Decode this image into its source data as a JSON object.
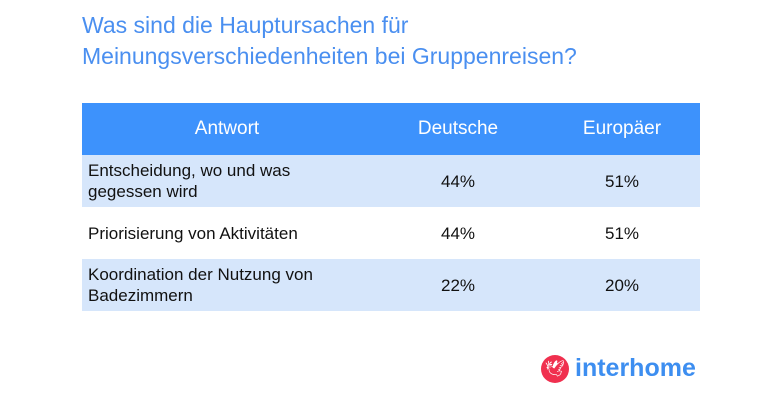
{
  "title_line1": "Was sind die Hauptursachen für",
  "title_line2": "Meinungsverschiedenheiten bei Gruppenreisen?",
  "table": {
    "headers": [
      "Antwort",
      "Deutsche",
      "Europäer"
    ],
    "rows": [
      {
        "answer": "Entscheidung, wo und was gegessen wird",
        "de": "44%",
        "eu": "51%"
      },
      {
        "answer": "Priorisierung von Aktivitäten",
        "de": "44%",
        "eu": "51%"
      },
      {
        "answer": "Koordination der Nutzung von Badezimmern",
        "de": "22%",
        "eu": "20%"
      }
    ]
  },
  "brand": "interhome"
}
